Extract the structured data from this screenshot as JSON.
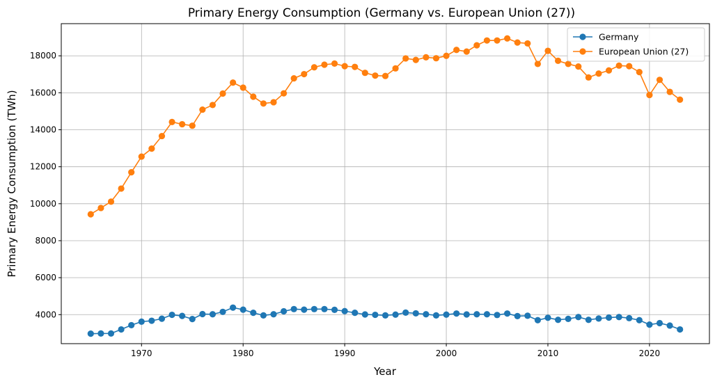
{
  "chart_data": {
    "type": "line",
    "title": "Primary Energy Consumption (Germany vs. European Union (27))",
    "xlabel": "Year",
    "ylabel": "Primary Energy Consumption (TWh)",
    "xlim": [
      1962.1,
      2025.9
    ],
    "ylim": [
      2430,
      19740
    ],
    "xticks": [
      1970,
      1980,
      1990,
      2000,
      2010,
      2020
    ],
    "yticks": [
      4000,
      6000,
      8000,
      10000,
      12000,
      14000,
      16000,
      18000
    ],
    "grid": true,
    "legend_position": "top-right",
    "x": [
      1965,
      1966,
      1967,
      1968,
      1969,
      1970,
      1971,
      1972,
      1973,
      1974,
      1975,
      1976,
      1977,
      1978,
      1979,
      1980,
      1981,
      1982,
      1983,
      1984,
      1985,
      1986,
      1987,
      1988,
      1989,
      1990,
      1991,
      1992,
      1993,
      1994,
      1995,
      1996,
      1997,
      1998,
      1999,
      2000,
      2001,
      2002,
      2003,
      2004,
      2005,
      2006,
      2007,
      2008,
      2009,
      2010,
      2011,
      2012,
      2013,
      2014,
      2015,
      2016,
      2017,
      2018,
      2019,
      2020,
      2021,
      2022,
      2023
    ],
    "series": [
      {
        "name": "Germany",
        "color": "#1f77b4",
        "values": [
          2970,
          2980,
          2980,
          3200,
          3430,
          3620,
          3670,
          3780,
          3990,
          3930,
          3760,
          4030,
          4020,
          4150,
          4380,
          4270,
          4100,
          3960,
          4020,
          4180,
          4300,
          4270,
          4300,
          4300,
          4260,
          4190,
          4100,
          4010,
          3990,
          3960,
          4000,
          4110,
          4070,
          4020,
          3960,
          4000,
          4060,
          4010,
          4020,
          4020,
          3980,
          4060,
          3920,
          3940,
          3700,
          3830,
          3720,
          3770,
          3870,
          3720,
          3790,
          3840,
          3870,
          3810,
          3700,
          3460,
          3540,
          3410,
          3200
        ]
      },
      {
        "name": "European Union (27)",
        "color": "#ff7f0e",
        "values": [
          9430,
          9770,
          10110,
          10820,
          11700,
          12550,
          12980,
          13660,
          14420,
          14300,
          14220,
          15090,
          15340,
          15960,
          16550,
          16280,
          15790,
          15420,
          15490,
          15970,
          16780,
          17010,
          17380,
          17520,
          17580,
          17440,
          17400,
          17080,
          16930,
          16910,
          17320,
          17860,
          17780,
          17920,
          17870,
          18000,
          18320,
          18230,
          18570,
          18830,
          18830,
          18940,
          18720,
          18670,
          17560,
          18270,
          17730,
          17560,
          17420,
          16830,
          17040,
          17210,
          17470,
          17440,
          17120,
          15880,
          16700,
          16050,
          15630
        ]
      }
    ]
  }
}
